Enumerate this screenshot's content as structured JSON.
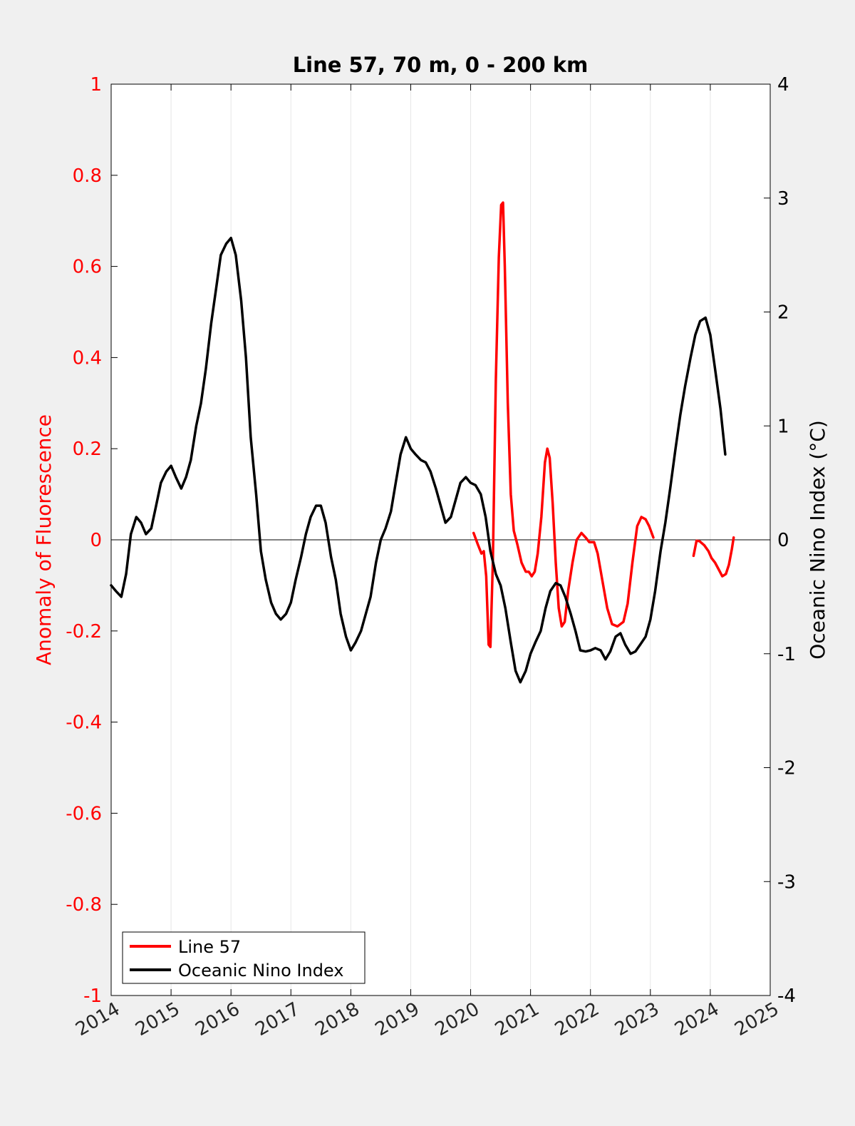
{
  "chart_data": {
    "type": "line",
    "title": "Line 57, 70 m, 0 - 200 km",
    "xlabel": "",
    "ylabel_left": "Anomaly of Fluorescence",
    "ylabel_right": "Oceanic Nino Index (°C)",
    "xlim": [
      2014,
      2025
    ],
    "ylim_left": [
      -1,
      1
    ],
    "ylim_right": [
      -4,
      4
    ],
    "x_ticks": [
      2014,
      2015,
      2016,
      2017,
      2018,
      2019,
      2020,
      2021,
      2022,
      2023,
      2024,
      2025
    ],
    "y_ticks_left": [
      "1",
      "0.8",
      "0.6",
      "0.4",
      "0.2",
      "0",
      "-0.2",
      "-0.4",
      "-0.6",
      "-0.8",
      "-1"
    ],
    "y_ticks_right": [
      "4",
      "3",
      "2",
      "1",
      "0",
      "-1",
      "-2",
      "-3",
      "-4"
    ],
    "grid": "vertical",
    "zero_line": true,
    "legend_position": "bottom-left",
    "colors": {
      "line57": "#ff0000",
      "oni": "#000000",
      "left_axis": "#ff0000",
      "right_axis": "#000000"
    },
    "series": [
      {
        "name": "Line 57",
        "axis": "left",
        "segments": [
          [
            [
              2020.05,
              0.015
            ],
            [
              2020.12,
              -0.01
            ],
            [
              2020.18,
              -0.03
            ],
            [
              2020.22,
              -0.025
            ],
            [
              2020.26,
              -0.08
            ],
            [
              2020.3,
              -0.23
            ],
            [
              2020.33,
              -0.235
            ],
            [
              2020.37,
              -0.05
            ],
            [
              2020.42,
              0.35
            ],
            [
              2020.47,
              0.62
            ],
            [
              2020.51,
              0.735
            ],
            [
              2020.54,
              0.74
            ],
            [
              2020.57,
              0.6
            ],
            [
              2020.62,
              0.3
            ],
            [
              2020.67,
              0.1
            ],
            [
              2020.72,
              0.02
            ],
            [
              2020.78,
              -0.01
            ],
            [
              2020.85,
              -0.05
            ],
            [
              2020.92,
              -0.07
            ],
            [
              2020.97,
              -0.07
            ],
            [
              2021.02,
              -0.08
            ],
            [
              2021.07,
              -0.07
            ],
            [
              2021.12,
              -0.03
            ],
            [
              2021.18,
              0.05
            ],
            [
              2021.24,
              0.17
            ],
            [
              2021.28,
              0.2
            ],
            [
              2021.32,
              0.18
            ],
            [
              2021.37,
              0.08
            ],
            [
              2021.42,
              -0.05
            ],
            [
              2021.47,
              -0.15
            ],
            [
              2021.52,
              -0.19
            ],
            [
              2021.57,
              -0.18
            ],
            [
              2021.63,
              -0.11
            ],
            [
              2021.7,
              -0.05
            ],
            [
              2021.77,
              0.0
            ],
            [
              2021.85,
              0.015
            ],
            [
              2021.92,
              0.005
            ],
            [
              2021.98,
              -0.005
            ],
            [
              2022.06,
              -0.005
            ],
            [
              2022.12,
              -0.03
            ],
            [
              2022.2,
              -0.09
            ],
            [
              2022.28,
              -0.15
            ],
            [
              2022.36,
              -0.185
            ],
            [
              2022.45,
              -0.19
            ],
            [
              2022.55,
              -0.18
            ],
            [
              2022.62,
              -0.14
            ],
            [
              2022.7,
              -0.05
            ],
            [
              2022.78,
              0.03
            ],
            [
              2022.85,
              0.05
            ],
            [
              2022.92,
              0.045
            ],
            [
              2022.98,
              0.03
            ],
            [
              2023.05,
              0.005
            ]
          ],
          [
            [
              2023.72,
              -0.035
            ],
            [
              2023.77,
              -0.002
            ],
            [
              2023.82,
              -0.003
            ],
            [
              2023.9,
              -0.012
            ],
            [
              2023.97,
              -0.025
            ],
            [
              2024.02,
              -0.04
            ],
            [
              2024.08,
              -0.05
            ],
            [
              2024.14,
              -0.065
            ],
            [
              2024.2,
              -0.08
            ],
            [
              2024.26,
              -0.075
            ],
            [
              2024.31,
              -0.055
            ],
            [
              2024.36,
              -0.02
            ],
            [
              2024.39,
              0.005
            ]
          ]
        ]
      },
      {
        "name": "Oceanic Nino Index",
        "axis": "right",
        "segments": [
          [
            [
              2014.0,
              -0.4
            ],
            [
              2014.08,
              -0.45
            ],
            [
              2014.17,
              -0.5
            ],
            [
              2014.25,
              -0.3
            ],
            [
              2014.33,
              0.05
            ],
            [
              2014.42,
              0.2
            ],
            [
              2014.5,
              0.15
            ],
            [
              2014.58,
              0.05
            ],
            [
              2014.67,
              0.1
            ],
            [
              2014.75,
              0.3
            ],
            [
              2014.83,
              0.5
            ],
            [
              2014.92,
              0.6
            ],
            [
              2015.0,
              0.65
            ],
            [
              2015.08,
              0.55
            ],
            [
              2015.17,
              0.45
            ],
            [
              2015.25,
              0.55
            ],
            [
              2015.33,
              0.7
            ],
            [
              2015.42,
              1.0
            ],
            [
              2015.5,
              1.2
            ],
            [
              2015.58,
              1.5
            ],
            [
              2015.67,
              1.9
            ],
            [
              2015.75,
              2.2
            ],
            [
              2015.83,
              2.5
            ],
            [
              2015.92,
              2.6
            ],
            [
              2016.0,
              2.65
            ],
            [
              2016.08,
              2.5
            ],
            [
              2016.17,
              2.1
            ],
            [
              2016.25,
              1.6
            ],
            [
              2016.33,
              0.9
            ],
            [
              2016.42,
              0.4
            ],
            [
              2016.5,
              -0.1
            ],
            [
              2016.58,
              -0.35
            ],
            [
              2016.67,
              -0.55
            ],
            [
              2016.75,
              -0.65
            ],
            [
              2016.83,
              -0.7
            ],
            [
              2016.92,
              -0.65
            ],
            [
              2017.0,
              -0.55
            ],
            [
              2017.08,
              -0.35
            ],
            [
              2017.17,
              -0.15
            ],
            [
              2017.25,
              0.05
            ],
            [
              2017.33,
              0.2
            ],
            [
              2017.42,
              0.3
            ],
            [
              2017.5,
              0.3
            ],
            [
              2017.58,
              0.15
            ],
            [
              2017.67,
              -0.15
            ],
            [
              2017.75,
              -0.35
            ],
            [
              2017.83,
              -0.65
            ],
            [
              2017.92,
              -0.85
            ],
            [
              2018.0,
              -0.97
            ],
            [
              2018.08,
              -0.9
            ],
            [
              2018.17,
              -0.8
            ],
            [
              2018.25,
              -0.65
            ],
            [
              2018.33,
              -0.5
            ],
            [
              2018.42,
              -0.2
            ],
            [
              2018.5,
              0.0
            ],
            [
              2018.58,
              0.1
            ],
            [
              2018.67,
              0.25
            ],
            [
              2018.75,
              0.5
            ],
            [
              2018.83,
              0.75
            ],
            [
              2018.92,
              0.9
            ],
            [
              2019.0,
              0.8
            ],
            [
              2019.08,
              0.75
            ],
            [
              2019.17,
              0.7
            ],
            [
              2019.25,
              0.68
            ],
            [
              2019.33,
              0.6
            ],
            [
              2019.42,
              0.45
            ],
            [
              2019.5,
              0.3
            ],
            [
              2019.58,
              0.15
            ],
            [
              2019.67,
              0.2
            ],
            [
              2019.75,
              0.35
            ],
            [
              2019.83,
              0.5
            ],
            [
              2019.92,
              0.55
            ],
            [
              2020.0,
              0.5
            ],
            [
              2020.08,
              0.48
            ],
            [
              2020.17,
              0.4
            ],
            [
              2020.25,
              0.2
            ],
            [
              2020.33,
              -0.1
            ],
            [
              2020.42,
              -0.3
            ],
            [
              2020.5,
              -0.4
            ],
            [
              2020.58,
              -0.6
            ],
            [
              2020.67,
              -0.9
            ],
            [
              2020.75,
              -1.15
            ],
            [
              2020.83,
              -1.25
            ],
            [
              2020.92,
              -1.15
            ],
            [
              2021.0,
              -1.0
            ],
            [
              2021.08,
              -0.9
            ],
            [
              2021.17,
              -0.8
            ],
            [
              2021.25,
              -0.6
            ],
            [
              2021.33,
              -0.45
            ],
            [
              2021.42,
              -0.38
            ],
            [
              2021.5,
              -0.4
            ],
            [
              2021.58,
              -0.5
            ],
            [
              2021.67,
              -0.65
            ],
            [
              2021.75,
              -0.8
            ],
            [
              2021.83,
              -0.97
            ],
            [
              2021.92,
              -0.98
            ],
            [
              2022.0,
              -0.97
            ],
            [
              2022.08,
              -0.95
            ],
            [
              2022.17,
              -0.97
            ],
            [
              2022.25,
              -1.05
            ],
            [
              2022.33,
              -0.98
            ],
            [
              2022.42,
              -0.85
            ],
            [
              2022.5,
              -0.82
            ],
            [
              2022.58,
              -0.92
            ],
            [
              2022.67,
              -1.0
            ],
            [
              2022.75,
              -0.98
            ],
            [
              2022.83,
              -0.92
            ],
            [
              2022.92,
              -0.85
            ],
            [
              2023.0,
              -0.7
            ],
            [
              2023.08,
              -0.45
            ],
            [
              2023.17,
              -0.1
            ],
            [
              2023.25,
              0.15
            ],
            [
              2023.33,
              0.45
            ],
            [
              2023.42,
              0.8
            ],
            [
              2023.5,
              1.1
            ],
            [
              2023.58,
              1.35
            ],
            [
              2023.67,
              1.6
            ],
            [
              2023.75,
              1.8
            ],
            [
              2023.83,
              1.92
            ],
            [
              2023.92,
              1.95
            ],
            [
              2024.0,
              1.8
            ],
            [
              2024.08,
              1.5
            ],
            [
              2024.17,
              1.15
            ],
            [
              2024.25,
              0.75
            ]
          ]
        ]
      }
    ]
  }
}
